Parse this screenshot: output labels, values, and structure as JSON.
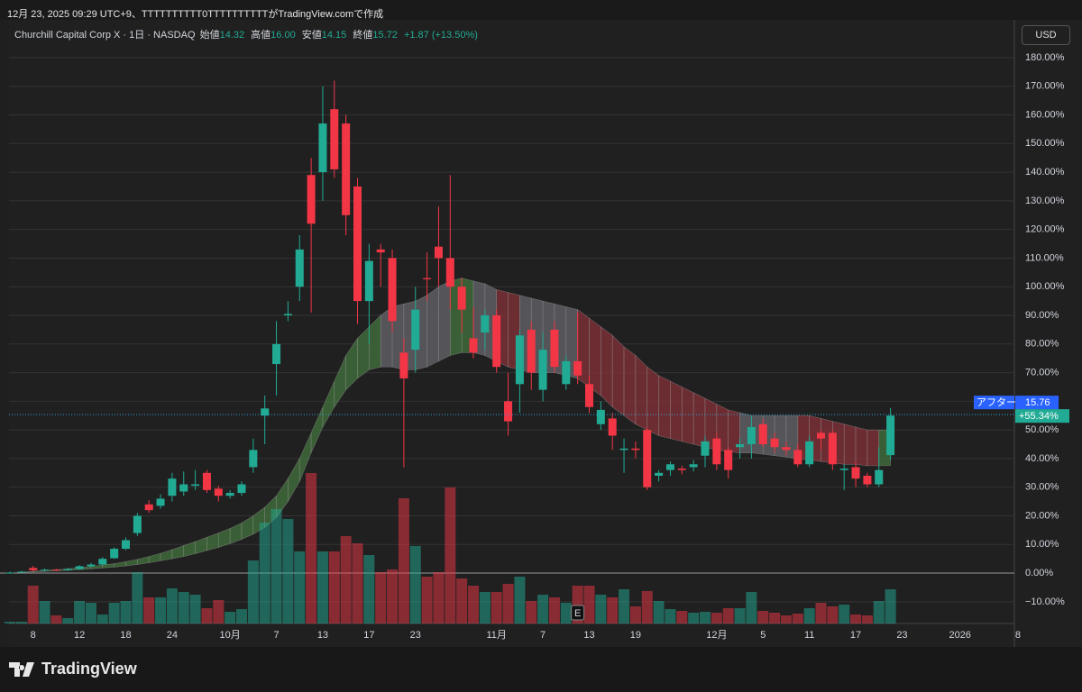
{
  "header": {
    "caption": "12月 23, 2025 09:29 UTC+9、TTTTTTTTTT0TTTTTTTTTTがTradingView.comで作成",
    "symbol": "Churchill Capital Corp X · 1日 · NASDAQ",
    "open_label": "始値",
    "open": "14.32",
    "high_label": "高値",
    "high": "16.00",
    "low_label": "安値",
    "low": "14.15",
    "close_label": "終値",
    "close": "15.72",
    "change": "+1.87 (+13.50%)",
    "currency": "USD"
  },
  "brand": "TradingView",
  "chart_data": {
    "type": "candlestick",
    "categories": [
      null,
      null,
      "8",
      null,
      null,
      null,
      "12",
      null,
      null,
      null,
      "18",
      null,
      null,
      null,
      "24",
      null,
      null,
      null,
      null,
      "10月",
      null,
      null,
      null,
      "7",
      null,
      null,
      null,
      "13",
      null,
      null,
      null,
      "17",
      null,
      null,
      null,
      "23",
      null,
      null,
      null,
      null,
      null,
      null,
      "11月",
      null,
      null,
      null,
      "7",
      null,
      null,
      null,
      "13",
      null,
      null,
      null,
      "19",
      null,
      null,
      null,
      null,
      null,
      null,
      "12月",
      null,
      null,
      null,
      "5",
      null,
      null,
      null,
      "11",
      null,
      null,
      null,
      "17",
      null,
      null,
      null,
      "23",
      null,
      null,
      null,
      null,
      "2026",
      null,
      null,
      null,
      null,
      "8"
    ],
    "open": [
      0,
      0.2,
      1.8,
      1.0,
      1.2,
      1.0,
      1.4,
      2.4,
      3.0,
      5.2,
      8.5,
      14.0,
      24.0,
      23.5,
      27.0,
      28.5,
      30.5,
      35.0,
      29.5,
      27.0,
      28.0,
      37.0,
      55.0,
      73.0,
      90.0,
      100.0,
      139.0,
      140.0,
      162.0,
      157.0,
      135.0,
      95.0,
      113.0,
      110.0,
      77.0,
      78.0,
      103.0,
      114.0,
      110.0,
      100.0,
      82.0,
      84.0,
      90.0,
      60.0,
      66.0,
      85.0,
      64.0,
      85.0,
      66.0,
      74.0,
      66.0,
      52.0,
      54.0,
      43.0,
      43.5,
      50.0,
      34.0,
      36.0,
      36.5,
      37.0,
      41.0,
      47.0,
      43.0,
      44.0,
      45.0,
      52.0,
      47.0,
      44.0,
      43.0,
      38.0,
      49.0,
      49.0,
      36.0,
      37.0,
      34.0,
      31.0,
      41.2,
      null,
      null,
      null,
      null,
      null,
      null,
      null,
      null,
      null,
      null,
      null
    ],
    "high": [
      0.5,
      0.8,
      2.5,
      1.6,
      1.5,
      1.8,
      2.8,
      3.6,
      5.6,
      9.0,
      12.5,
      21.0,
      25.5,
      27.5,
      35.0,
      35.5,
      36.0,
      36.0,
      30.5,
      29.0,
      32.0,
      47.0,
      62.0,
      88.0,
      95.0,
      118.0,
      145.0,
      170.0,
      172.0,
      160.0,
      138.0,
      115.0,
      115.0,
      113.0,
      82.0,
      100.0,
      112.0,
      128.0,
      139.0,
      103.0,
      93.0,
      92.0,
      92.0,
      70.0,
      85.0,
      88.0,
      84.0,
      88.0,
      76.0,
      91.0,
      69.0,
      60.0,
      56.0,
      47.0,
      46.0,
      51.0,
      36.0,
      39.0,
      37.5,
      39.5,
      48.0,
      49.0,
      44.0,
      47.0,
      55.0,
      54.0,
      49.0,
      46.0,
      45.0,
      48.0,
      50.0,
      50.0,
      38.0,
      39.0,
      35.0,
      44.0,
      57.7,
      null,
      null,
      null,
      null,
      null,
      null,
      null,
      null,
      null,
      null,
      null
    ],
    "low": [
      -0.2,
      0,
      0.6,
      0.8,
      0.7,
      0.8,
      1.2,
      2.0,
      2.8,
      5.0,
      8.0,
      13.0,
      21.0,
      22.5,
      25.0,
      27.0,
      29.0,
      28.0,
      25.0,
      26.0,
      27.0,
      35.0,
      45.0,
      62.0,
      88.0,
      95.0,
      91.0,
      130.0,
      138.0,
      118.0,
      87.0,
      80.0,
      100.0,
      84.0,
      37.0,
      70.0,
      95.0,
      100.0,
      92.0,
      84.0,
      75.0,
      78.0,
      70.0,
      48.0,
      56.0,
      64.0,
      60.0,
      70.0,
      64.0,
      66.0,
      56.0,
      50.0,
      43.0,
      35.0,
      40.0,
      29.0,
      32.0,
      34.0,
      34.5,
      35.5,
      37.0,
      36.0,
      33.0,
      40.0,
      40.0,
      44.0,
      42.0,
      41.0,
      37.0,
      37.0,
      43.0,
      36.0,
      29.0,
      30.0,
      30.0,
      30.0,
      39.5,
      null,
      null,
      null,
      null,
      null,
      null,
      null,
      null,
      null,
      null,
      null
    ],
    "close": [
      0.2,
      0.5,
      1.0,
      1.2,
      1.0,
      1.4,
      2.4,
      3.0,
      5.0,
      8.5,
      11.5,
      20.0,
      22.0,
      26.0,
      33.0,
      31.0,
      31.0,
      29.0,
      27.0,
      28.0,
      31.0,
      43.0,
      57.5,
      80.0,
      90.5,
      113.0,
      122.0,
      157.0,
      141.0,
      125.0,
      95.0,
      109.0,
      112.0,
      88.0,
      68.0,
      92.0,
      102.6,
      110.0,
      100.0,
      92.0,
      77.0,
      90.0,
      72.0,
      53.0,
      83.0,
      70.0,
      78.0,
      72.0,
      74.0,
      69.0,
      58.0,
      57.0,
      48.0,
      43.5,
      43.0,
      30.0,
      35.0,
      38.0,
      36.0,
      38.0,
      46.0,
      38.0,
      36.0,
      45.0,
      51.0,
      45.0,
      44.0,
      43.0,
      38.0,
      46.0,
      47.0,
      38.0,
      36.5,
      33.0,
      31.0,
      36.0,
      55.0,
      null,
      null,
      null,
      null,
      null,
      null,
      null,
      null,
      null,
      null,
      null
    ],
    "volume": [
      2,
      2,
      42,
      25,
      9,
      6,
      25,
      23,
      10,
      23,
      25,
      57,
      29,
      29,
      39,
      35,
      32,
      17,
      26,
      13,
      16,
      70,
      112,
      127,
      116,
      80,
      167,
      80,
      80,
      97,
      89,
      76,
      57,
      60,
      139,
      86,
      52,
      57,
      151,
      50,
      42,
      35,
      35,
      44,
      52,
      25,
      32,
      29,
      23,
      42,
      42,
      32,
      29,
      38,
      19,
      36,
      25,
      16,
      14,
      12,
      13,
      12,
      17,
      17,
      35,
      14,
      12,
      9,
      11,
      17,
      23,
      19,
      21,
      10,
      9,
      25,
      38,
      null,
      null,
      null,
      null,
      null,
      null,
      null,
      null,
      null,
      null,
      null
    ],
    "band_upper": [
      0,
      0.3,
      0.6,
      0.9,
      1.2,
      1.5,
      1.9,
      2.3,
      2.8,
      3.3,
      4,
      4.8,
      5.8,
      6.9,
      8.2,
      9.6,
      11,
      12.5,
      14,
      15.6,
      17.5,
      20,
      23,
      27,
      33,
      40,
      49,
      58,
      67,
      76,
      82,
      86,
      90,
      93,
      94,
      95,
      97,
      100,
      102,
      103,
      102,
      101,
      99,
      98,
      97,
      96,
      95,
      94,
      93,
      92,
      89,
      86,
      83,
      79,
      76,
      72,
      69,
      67,
      65,
      63,
      61,
      59,
      57,
      56,
      55,
      55,
      55,
      55,
      55,
      55,
      54,
      53,
      52,
      51,
      50,
      50,
      50,
      null,
      null,
      null,
      null,
      null,
      null,
      null,
      null,
      null,
      null,
      null
    ],
    "band_lower": [
      0,
      0.2,
      0.4,
      0.6,
      0.8,
      1,
      1.2,
      1.5,
      1.8,
      2.1,
      2.5,
      3,
      3.6,
      4.3,
      5,
      5.8,
      6.8,
      7.9,
      9,
      10.3,
      11.8,
      13.6,
      16,
      19.5,
      25,
      32,
      42,
      51,
      58,
      64,
      68,
      71,
      72,
      72,
      71,
      71,
      72,
      74,
      76,
      77,
      77,
      76,
      74,
      72,
      71,
      70,
      70,
      70,
      69,
      68,
      65,
      62,
      58,
      55,
      52,
      50,
      48,
      47,
      46,
      45,
      44,
      43,
      42.5,
      42,
      42,
      41.5,
      41,
      40.5,
      40,
      39.5,
      39,
      38.5,
      38,
      38,
      37.5,
      37.5,
      37.5,
      null,
      null,
      null,
      null,
      null,
      null,
      null,
      null,
      null,
      null,
      null
    ],
    "band_colors": [
      "#3f6a3a",
      "#3f6a3a",
      "#3f6a3a",
      "#3f6a3a",
      "#3f6a3a",
      "#3f6a3a",
      "#3f6a3a",
      "#3f6a3a",
      "#3f6a3a",
      "#3f6a3a",
      "#3f6a3a",
      "#3f6a3a",
      "#3f6a3a",
      "#3f6a3a",
      "#3f6a3a",
      "#3f6a3a",
      "#3f6a3a",
      "#3f6a3a",
      "#3f6a3a",
      "#3f6a3a",
      "#3f6a3a",
      "#3f6a3a",
      "#3f6a3a",
      "#3f6a3a",
      "#3f6a3a",
      "#3f6a3a",
      "#3f6a3a",
      "#3f6a3a",
      "#3f6a3a",
      "#3f6a3a",
      "#3f6a3a",
      "#3f6a3a",
      "#5e5e64",
      "#5e5e64",
      "#5e5e64",
      "#5e5e64",
      "#5e5e64",
      "#5e5e64",
      "#3f6a3a",
      "#3f6a3a",
      "#5e5e64",
      "#5e5e64",
      "#7a3036",
      "#7a3036",
      "#5e5e64",
      "#5e5e64",
      "#5e5e64",
      "#5e5e64",
      "#5e5e64",
      "#7a3036",
      "#7a3036",
      "#7a3036",
      "#7a3036",
      "#7a3036",
      "#7a3036",
      "#7a3036",
      "#7a3036",
      "#7a3036",
      "#7a3036",
      "#7a3036",
      "#7a3036",
      "#7a3036",
      "#7a3036",
      "#5e5e64",
      "#5e5e64",
      "#5e5e64",
      "#5e5e64",
      "#5e5e64",
      "#7a3036",
      "#7a3036",
      "#7a3036",
      "#7a3036",
      "#7a3036",
      "#7a3036",
      "#7a3036",
      "#3f6a3a",
      "#3f6a3a",
      null,
      null,
      null,
      null,
      null,
      null,
      null,
      null,
      null,
      null,
      null
    ],
    "up_color": "#22ab94",
    "down_color": "#f23645",
    "ylim": [
      -17.6,
      193.2
    ],
    "yticks": [
      {
        "value": -10,
        "label": "−10.00%"
      },
      {
        "value": 0,
        "label": "0.00%"
      },
      {
        "value": 10,
        "label": "10.00%"
      },
      {
        "value": 20,
        "label": "20.00%"
      },
      {
        "value": 30,
        "label": "30.00%"
      },
      {
        "value": 40,
        "label": "40.00%"
      },
      {
        "value": 50,
        "label": "50.00%"
      },
      {
        "value": 60,
        "label": "60.00%"
      },
      {
        "value": 70,
        "label": "70.00%"
      },
      {
        "value": 80,
        "label": "80.00%"
      },
      {
        "value": 90,
        "label": "90.00%"
      },
      {
        "value": 100,
        "label": "100.00%"
      },
      {
        "value": 110,
        "label": "110.00%"
      },
      {
        "value": 120,
        "label": "120.00%"
      },
      {
        "value": 130,
        "label": "130.00%"
      },
      {
        "value": 140,
        "label": "140.00%"
      },
      {
        "value": 150,
        "label": "150.00%"
      },
      {
        "value": 160,
        "label": "160.00%"
      },
      {
        "value": 170,
        "label": "170.00%"
      },
      {
        "value": 180,
        "label": "180.00%"
      }
    ],
    "baseline": 0,
    "grid": true,
    "event": {
      "label": "E",
      "index": 49
    },
    "last": {
      "session": "アフター",
      "price": "15.76",
      "value": 55.34,
      "change": "+55.34%"
    }
  }
}
